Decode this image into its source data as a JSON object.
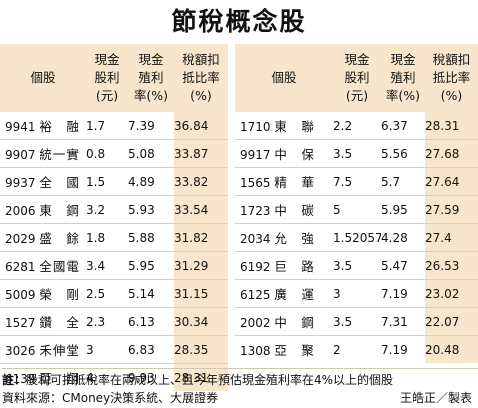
{
  "title": "節稅概念股",
  "headers": {
    "stock": "個股",
    "dividend": [
      "現金",
      "股利",
      "(元)"
    ],
    "yield": [
      "現金",
      "殖利",
      "率(%)"
    ],
    "ratio": [
      "稅額扣",
      "抵比率",
      "(%)"
    ]
  },
  "left_rows": [
    {
      "code": "9941",
      "name": "裕　融",
      "dividend": "1.7",
      "yield": "7.39",
      "ratio": "36.84"
    },
    {
      "code": "9907",
      "name": "統一實",
      "dividend": "0.8",
      "yield": "5.08",
      "ratio": "33.87"
    },
    {
      "code": "9937",
      "name": "全　國",
      "dividend": "1.5",
      "yield": "4.89",
      "ratio": "33.82"
    },
    {
      "code": "2006",
      "name": "東　鋼",
      "dividend": "3.2",
      "yield": "5.93",
      "ratio": "33.54"
    },
    {
      "code": "2029",
      "name": "盛　餘",
      "dividend": "1.8",
      "yield": "5.88",
      "ratio": "31.82"
    },
    {
      "code": "6281",
      "name": "全國電",
      "dividend": "3.4",
      "yield": "5.95",
      "ratio": "31.29"
    },
    {
      "code": "5009",
      "name": "榮　剛",
      "dividend": "2.5",
      "yield": "5.14",
      "ratio": "31.15"
    },
    {
      "code": "1527",
      "name": "鑽　全",
      "dividend": "2.3",
      "yield": "6.13",
      "ratio": "30.34"
    },
    {
      "code": "3026",
      "name": "禾伸堂",
      "dividend": "3",
      "yield": "6.83",
      "ratio": "28.35"
    },
    {
      "code": "6139",
      "name": "亞　翔",
      "dividend": "4",
      "yield": "9.93",
      "ratio": "28.31"
    }
  ],
  "right_rows": [
    {
      "code": "1710",
      "name": "東　聯",
      "dividend": "2.2",
      "yield": "6.37",
      "ratio": "28.31"
    },
    {
      "code": "9917",
      "name": "中　保",
      "dividend": "3.5",
      "yield": "5.56",
      "ratio": "27.68"
    },
    {
      "code": "1565",
      "name": "精　華",
      "dividend": "7.5",
      "yield": "5.7",
      "ratio": "27.64"
    },
    {
      "code": "1723",
      "name": "中　碳",
      "dividend": "5",
      "yield": "5.95",
      "ratio": "27.59"
    },
    {
      "code": "2034",
      "name": "允　強",
      "dividend": "1.52057",
      "yield": "4.28",
      "ratio": "27.4"
    },
    {
      "code": "6192",
      "name": "巨　路",
      "dividend": "3.5",
      "yield": "5.47",
      "ratio": "26.53"
    },
    {
      "code": "6125",
      "name": "廣　運",
      "dividend": "3",
      "yield": "7.19",
      "ratio": "23.02"
    },
    {
      "code": "2002",
      "name": "中　鋼",
      "dividend": "3.5",
      "yield": "7.31",
      "ratio": "22.07"
    },
    {
      "code": "1308",
      "name": "亞　聚",
      "dividend": "2",
      "yield": "7.19",
      "ratio": "20.48"
    }
  ],
  "note": {
    "label": "註：",
    "text": "股利可扣抵稅率在兩成以上、且今年預估現金殖利率在4%以上的個股"
  },
  "source": {
    "text": "資料來源：CMoney決策系統、大展證券",
    "credit": "王皓正／製表"
  },
  "colors": {
    "header_bg": "#f7e6cc",
    "row_line": "#d8cfc2"
  }
}
